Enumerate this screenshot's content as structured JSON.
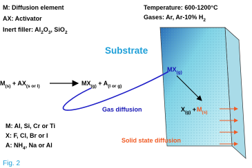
{
  "labels": {
    "legend_element": {
      "parts": [
        "M: Diffusion element"
      ],
      "color": "#000000"
    },
    "legend_activator": {
      "parts": [
        "AX: Activator"
      ],
      "color": "#000000"
    },
    "legend_filler": {
      "parts": [
        "Inert filler: Al",
        {
          "sub": "2"
        },
        "O",
        {
          "sub": "3"
        },
        ", SiO",
        {
          "sub": "2"
        }
      ],
      "color": "#000000"
    },
    "temperature": {
      "parts": [
        "Temperature: 600-1200°C"
      ],
      "color": "#000000"
    },
    "gases": {
      "parts": [
        "Gases: Ar, Ar-10% H",
        {
          "sub": "2"
        }
      ],
      "color": "#000000"
    },
    "substrate": {
      "parts": [
        "Substrate"
      ],
      "color": "#1e9fd8"
    },
    "reaction_left": {
      "parts": [
        "M",
        {
          "sub": "(s)"
        },
        " + AX",
        {
          "sub": "(s or l)"
        }
      ],
      "color": "#000000"
    },
    "reaction_right": {
      "parts": [
        "MX",
        {
          "sub": "(g)"
        },
        " + A",
        {
          "sub": "(l or g)"
        }
      ],
      "color": "#000000"
    },
    "mx_surface": {
      "parts": [
        "MX",
        {
          "sub": "(g)"
        }
      ],
      "color": "#1414b4"
    },
    "product_x": {
      "parts": [
        "X",
        {
          "sub": "(g)"
        },
        " + "
      ],
      "color": "#000000"
    },
    "product_m": {
      "parts": [
        "M",
        {
          "sub": "(s)"
        }
      ],
      "color": "#f05a23"
    },
    "gas_diffusion": {
      "parts": [
        "Gas diffusion"
      ],
      "color": "#1414b4"
    },
    "solid_diffusion": {
      "parts": [
        "Solid state diffusion"
      ],
      "color": "#f05a23"
    },
    "list_m": {
      "parts": [
        "M: Al, Si, Cr or Ti"
      ],
      "color": "#000000"
    },
    "list_x": {
      "parts": [
        "X: F, Cl, Br or I"
      ],
      "color": "#000000"
    },
    "list_a": {
      "parts": [
        "A: NH",
        {
          "sub": "4"
        },
        ", Na or Al"
      ],
      "color": "#000000"
    },
    "figure": {
      "parts": [
        "Fig. 2"
      ],
      "color": "#1e9fd8"
    }
  }
}
